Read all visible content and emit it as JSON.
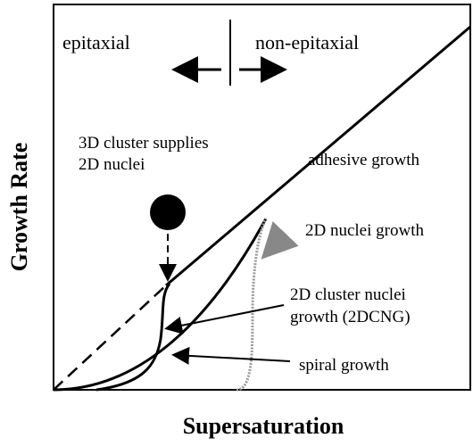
{
  "axes": {
    "x_label": "Supersaturation",
    "y_label": "Growth Rate"
  },
  "regions": [
    "epitaxial",
    "non-epitaxial"
  ],
  "annotations": {
    "cluster_supply": [
      "3D cluster supplies",
      "2D nuclei"
    ],
    "adhesive": "adhesive growth",
    "nuclei_2d": "2D nuclei growth",
    "cluster_nuclei": [
      "2D cluster nuclei",
      "growth (2DCNG)"
    ],
    "spiral": "spiral growth"
  }
}
